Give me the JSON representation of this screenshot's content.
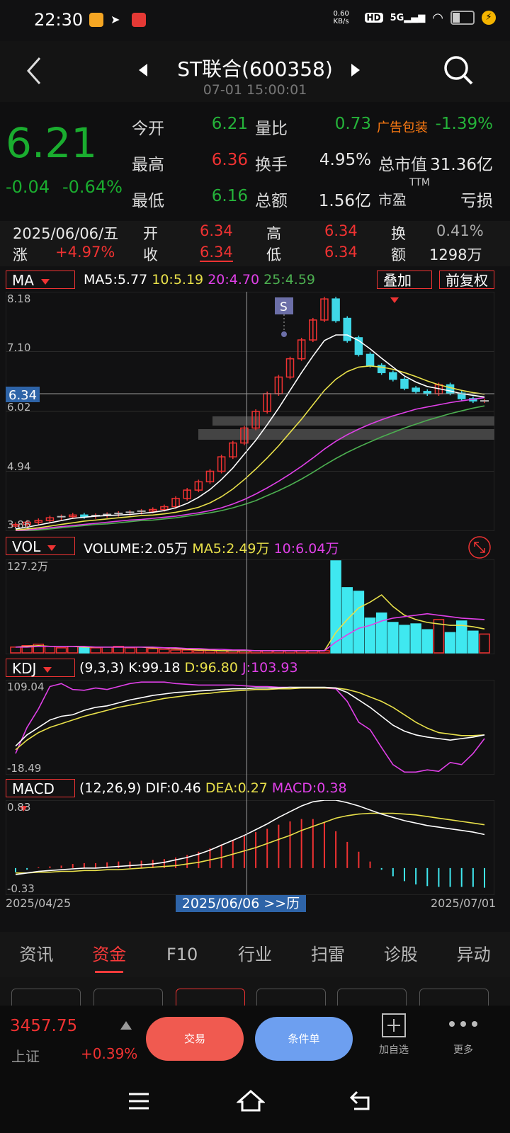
{
  "status_bar": {
    "time": "22:30",
    "net_speed": "0.60 KB/s",
    "hd": "HD",
    "signal": "5G"
  },
  "header": {
    "title": "ST联合(600358)",
    "datetime": "07-01 15:00:01"
  },
  "quote": {
    "price": "6.21",
    "change": "-0.04",
    "change_pct": "-0.64%",
    "fields": {
      "open_label": "今开",
      "open": "6.21",
      "high_label": "最高",
      "high": "6.36",
      "low_label": "最低",
      "low": "6.16",
      "vol_ratio_label": "量比",
      "vol_ratio": "0.73",
      "turnover_label": "换手",
      "turnover": "4.95%",
      "amount_label": "总额",
      "amount": "1.56亿",
      "sector": "广告包装",
      "sector_pct": "-1.39%",
      "mktcap_label": "总市值",
      "mktcap": "31.36亿",
      "pe_label": "市盈",
      "pe_sup": "TTM",
      "pe": "亏损"
    }
  },
  "day_info": {
    "date": "2025/06/06/五",
    "rise_label": "涨",
    "rise": "+4.97%",
    "open_label": "开",
    "open": "6.34",
    "close_label": "收",
    "close": "6.34",
    "high_label": "高",
    "high": "6.34",
    "low_label": "低",
    "low": "6.34",
    "turnover_label": "换",
    "turnover": "0.41%",
    "amount_label": "额",
    "amount": "1298万"
  },
  "ma_panel": {
    "selector": "MA",
    "ma5_label": "MA5:",
    "ma5": "5.77",
    "ma10_label": "10:",
    "ma10": "5.19",
    "ma20_label": "20:",
    "ma20": "4.70",
    "ma25_label": "25:",
    "ma25": "4.59",
    "overlay": "叠加",
    "adjust": "前复权",
    "y_max": "8.18",
    "y_t2": "7.10",
    "y_t3": "6.02",
    "y_t4": "4.94",
    "y_min": "3.86",
    "crosshair_price": "6.34",
    "signal_tag": "S"
  },
  "vol_panel": {
    "selector": "VOL",
    "volume_label": "VOLUME:",
    "volume": "2.05万",
    "ma5_label": "MA5:",
    "ma5": "2.49万",
    "ma10_label": "10:",
    "ma10": "6.04万",
    "y_max": "127.2万"
  },
  "kdj_panel": {
    "selector": "KDJ",
    "params": "(9,3,3)",
    "k_label": "K:",
    "k": "99.18",
    "d_label": "D:",
    "d": "96.80",
    "j_label": "J:",
    "j": "103.93",
    "y_max": "109.04",
    "y_min": "-18.49"
  },
  "macd_panel": {
    "selector": "MACD",
    "params": "(12,26,9)",
    "dif_label": "DIF:",
    "dif": "0.46",
    "dea_label": "DEA:",
    "dea": "0.27",
    "macd_label": "MACD:",
    "macd": "0.38",
    "y_max": "0.83",
    "y_min": "-0.33"
  },
  "x_axis": {
    "start": "2025/04/25",
    "cursor": "2025/06/06 >>历",
    "end": "2025/07/01"
  },
  "tabs": [
    "资讯",
    "资金",
    "F10",
    "行业",
    "扫雷",
    "诊股",
    "异动"
  ],
  "active_tab": "资金",
  "bottom": {
    "index_value": "3457.75",
    "index_name": "上证",
    "index_change": "+0.39%",
    "trade_button": "交易",
    "condition_button": "条件单",
    "add_watch": "加自选",
    "more": "更多"
  },
  "chart_data": {
    "type": "candlestick",
    "ylim": [
      3.86,
      8.18
    ],
    "price_candles": {
      "open": [
        3.95,
        3.98,
        4.02,
        4.05,
        4.1,
        4.12,
        4.15,
        4.12,
        4.14,
        4.16,
        4.18,
        4.2,
        4.22,
        4.25,
        4.3,
        4.45,
        4.6,
        4.75,
        4.94,
        5.2,
        5.45,
        5.72,
        6.02,
        6.34,
        6.64,
        6.97,
        7.31,
        7.67,
        8.05,
        7.7,
        7.35,
        7.05,
        6.85,
        6.72,
        6.6,
        6.44,
        6.38,
        6.34,
        6.5,
        6.35,
        6.25,
        6.21
      ],
      "close": [
        3.98,
        4.02,
        4.05,
        4.1,
        4.12,
        4.15,
        4.12,
        4.14,
        4.16,
        4.18,
        4.2,
        4.22,
        4.25,
        4.3,
        4.45,
        4.6,
        4.75,
        4.94,
        5.2,
        5.45,
        5.72,
        6.02,
        6.34,
        6.64,
        6.97,
        7.31,
        7.67,
        8.05,
        7.66,
        7.3,
        7.05,
        6.85,
        6.72,
        6.6,
        6.44,
        6.38,
        6.34,
        6.5,
        6.35,
        6.25,
        6.21,
        6.21
      ],
      "ma5": [
        3.9,
        3.93,
        3.97,
        4.01,
        4.05,
        4.09,
        4.11,
        4.13,
        4.14,
        4.15,
        4.16,
        4.18,
        4.2,
        4.23,
        4.28,
        4.36,
        4.47,
        4.61,
        4.79,
        5.0,
        5.25,
        5.5,
        5.78,
        6.08,
        6.4,
        6.72,
        7.02,
        7.3,
        7.4,
        7.4,
        7.3,
        7.15,
        6.98,
        6.82,
        6.66,
        6.55,
        6.47,
        6.43,
        6.39,
        6.34,
        6.31,
        6.28
      ],
      "ma10": [
        3.88,
        3.9,
        3.92,
        3.95,
        3.98,
        4.01,
        4.04,
        4.06,
        4.08,
        4.1,
        4.12,
        4.14,
        4.15,
        4.17,
        4.2,
        4.24,
        4.29,
        4.37,
        4.48,
        4.62,
        4.79,
        4.98,
        5.18,
        5.4,
        5.64,
        5.88,
        6.14,
        6.4,
        6.6,
        6.74,
        6.82,
        6.84,
        6.82,
        6.78,
        6.72,
        6.65,
        6.57,
        6.5,
        6.45,
        6.4,
        6.36,
        6.33
      ],
      "ma20": [
        3.87,
        3.88,
        3.9,
        3.92,
        3.94,
        3.96,
        3.98,
        4.0,
        4.02,
        4.04,
        4.06,
        4.07,
        4.09,
        4.11,
        4.13,
        4.16,
        4.19,
        4.23,
        4.28,
        4.35,
        4.43,
        4.53,
        4.64,
        4.76,
        4.89,
        5.03,
        5.18,
        5.34,
        5.48,
        5.6,
        5.7,
        5.79,
        5.87,
        5.94,
        6.0,
        6.06,
        6.1,
        6.14,
        6.18,
        6.21,
        6.24,
        6.27
      ],
      "ma25": [
        3.87,
        3.87,
        3.88,
        3.9,
        3.92,
        3.94,
        3.96,
        3.98,
        3.99,
        4.01,
        4.03,
        4.05,
        4.06,
        4.08,
        4.1,
        4.13,
        4.16,
        4.19,
        4.23,
        4.28,
        4.34,
        4.41,
        4.5,
        4.59,
        4.69,
        4.8,
        4.92,
        5.05,
        5.17,
        5.28,
        5.38,
        5.47,
        5.56,
        5.64,
        5.72,
        5.79,
        5.86,
        5.92,
        5.98,
        6.03,
        6.08,
        6.12
      ]
    },
    "volume": {
      "values": [
        8,
        10,
        12,
        9,
        7,
        9,
        8,
        7,
        8,
        9,
        7,
        8,
        6,
        5,
        4,
        4,
        3,
        3,
        3,
        3,
        3,
        3,
        3,
        3,
        3,
        3,
        3,
        3,
        127,
        90,
        85,
        48,
        55,
        42,
        38,
        40,
        32,
        46,
        28,
        44,
        30,
        26
      ],
      "ma5": [
        8,
        9,
        10,
        9,
        9,
        9,
        8,
        8,
        8,
        8,
        8,
        8,
        7,
        7,
        6,
        5,
        4,
        4,
        3,
        3,
        3,
        3,
        3,
        3,
        3,
        3,
        3,
        3,
        28,
        46,
        62,
        70,
        80,
        64,
        52,
        46,
        42,
        40,
        38,
        38,
        36,
        33
      ],
      "ma10": [
        8,
        8,
        9,
        9,
        9,
        9,
        9,
        8,
        8,
        8,
        8,
        8,
        8,
        7,
        7,
        6,
        6,
        5,
        5,
        4,
        4,
        3,
        3,
        3,
        3,
        3,
        3,
        3,
        15,
        25,
        34,
        38,
        44,
        48,
        50,
        52,
        54,
        52,
        50,
        48,
        47,
        46
      ]
    },
    "kdj": {
      "k": [
        20,
        35,
        45,
        55,
        60,
        62,
        68,
        72,
        74,
        78,
        82,
        85,
        88,
        90,
        92,
        93,
        94,
        95,
        96,
        97,
        97,
        98,
        98,
        98,
        99,
        99,
        99,
        99,
        98,
        92,
        82,
        72,
        60,
        48,
        40,
        35,
        32,
        30,
        28,
        30,
        32,
        35
      ],
      "d": [
        15,
        28,
        38,
        45,
        50,
        55,
        60,
        64,
        68,
        72,
        75,
        78,
        81,
        84,
        86,
        88,
        90,
        91,
        93,
        94,
        95,
        96,
        96,
        97,
        97,
        98,
        98,
        98,
        98,
        96,
        92,
        86,
        80,
        72,
        62,
        52,
        44,
        38,
        36,
        34,
        34,
        35
      ],
      "j": [
        10,
        45,
        70,
        100,
        104,
        96,
        95,
        98,
        96,
        100,
        104,
        106,
        106,
        106,
        104,
        103,
        102,
        102,
        102,
        102,
        101,
        100,
        100,
        99,
        99,
        98,
        98,
        98,
        97,
        80,
        52,
        42,
        18,
        -5,
        -15,
        -15,
        -12,
        -14,
        -2,
        -5,
        10,
        30
      ]
    },
    "macd": {
      "dif": [
        -0.08,
        -0.06,
        -0.04,
        -0.03,
        -0.02,
        -0.01,
        0.0,
        0.0,
        0.01,
        0.02,
        0.03,
        0.04,
        0.05,
        0.07,
        0.1,
        0.13,
        0.17,
        0.22,
        0.28,
        0.34,
        0.4,
        0.47,
        0.54,
        0.62,
        0.69,
        0.76,
        0.81,
        0.83,
        0.83,
        0.8,
        0.76,
        0.71,
        0.66,
        0.62,
        0.58,
        0.55,
        0.52,
        0.5,
        0.48,
        0.46,
        0.44,
        0.41
      ],
      "dea": [
        -0.06,
        -0.06,
        -0.05,
        -0.05,
        -0.04,
        -0.04,
        -0.03,
        -0.03,
        -0.02,
        -0.02,
        -0.01,
        0.0,
        0.01,
        0.02,
        0.03,
        0.05,
        0.07,
        0.1,
        0.13,
        0.17,
        0.21,
        0.25,
        0.3,
        0.35,
        0.4,
        0.46,
        0.51,
        0.56,
        0.61,
        0.64,
        0.66,
        0.67,
        0.67,
        0.67,
        0.66,
        0.65,
        0.63,
        0.61,
        0.59,
        0.57,
        0.55,
        0.53
      ],
      "hist": [
        -0.05,
        -0.02,
        0.01,
        0.02,
        0.03,
        0.05,
        0.06,
        0.06,
        0.07,
        0.08,
        0.08,
        0.09,
        0.1,
        0.11,
        0.13,
        0.16,
        0.2,
        0.24,
        0.29,
        0.34,
        0.39,
        0.44,
        0.48,
        0.53,
        0.57,
        0.6,
        0.6,
        0.56,
        0.45,
        0.32,
        0.2,
        0.08,
        -0.02,
        -0.1,
        -0.16,
        -0.2,
        -0.22,
        -0.23,
        -0.23,
        -0.23,
        -0.23,
        -0.24
      ]
    }
  }
}
